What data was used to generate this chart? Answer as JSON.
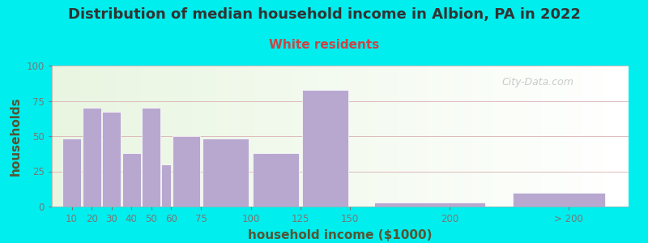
{
  "title": "Distribution of median household income in Albion, PA in 2022",
  "subtitle": "White residents",
  "xlabel": "household income ($1000)",
  "ylabel": "households",
  "title_fontsize": 13,
  "subtitle_fontsize": 11,
  "title_color": "#333333",
  "subtitle_color": "#cc4444",
  "xlabel_color": "#555533",
  "ylabel_color": "#555533",
  "label_fontsize": 11,
  "background_color": "#00eeee",
  "plot_bg_left": "#e8f5e0",
  "plot_bg_right": "#ffffff",
  "bar_color": "#b8a8d0",
  "bar_edgecolor": "#ffffff",
  "values": [
    48,
    70,
    67,
    38,
    70,
    30,
    50,
    48,
    38,
    83,
    3,
    10
  ],
  "bar_lefts": [
    5,
    15,
    25,
    35,
    45,
    55,
    60,
    75,
    100,
    125,
    160,
    230
  ],
  "bar_widths": [
    10,
    10,
    10,
    10,
    10,
    5,
    15,
    25,
    25,
    25,
    60,
    50
  ],
  "ylim": [
    0,
    100
  ],
  "yticks": [
    0,
    25,
    50,
    75,
    100
  ],
  "xtick_positions": [
    10,
    20,
    30,
    40,
    50,
    60,
    75,
    100,
    125,
    150,
    200,
    260
  ],
  "xtick_labels": [
    "10",
    "20",
    "30",
    "40",
    "50",
    "60",
    "75",
    "100",
    "125",
    "150",
    "200",
    "> 200"
  ],
  "xlim": [
    0,
    290
  ],
  "watermark": "City-Data.com",
  "grid_color": "#ddbbbb",
  "tick_color": "#777777"
}
